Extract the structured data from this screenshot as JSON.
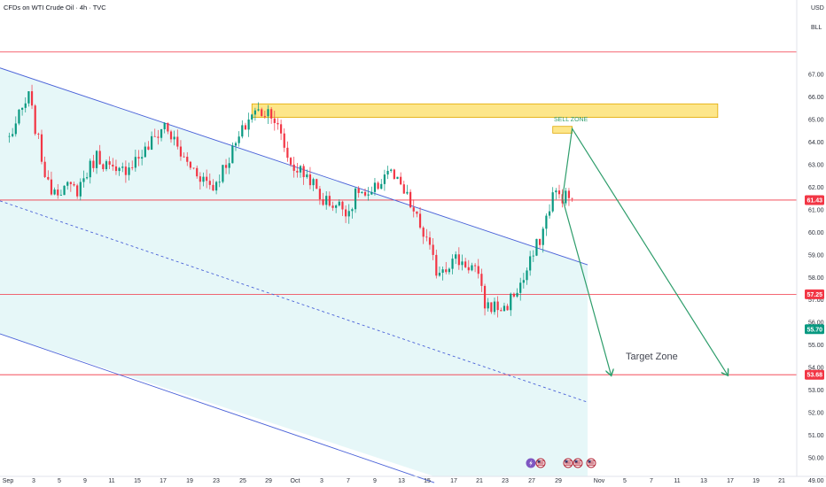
{
  "header": {
    "title": "CFDs on WTI Crude Oil · 4h · TVC",
    "currency": "USD",
    "unit": "BLL"
  },
  "annotations": {
    "sell_zone": "SELL ZONE",
    "target_zone": "Target Zone"
  },
  "price_labels": [
    {
      "value": "61.43",
      "price": 61.43,
      "color": "#f23645"
    },
    {
      "value": "57.25",
      "price": 57.25,
      "color": "#f23645"
    },
    {
      "value": "55.70",
      "price": 55.7,
      "color": "#089981"
    },
    {
      "value": "53.68",
      "price": 53.68,
      "color": "#f23645"
    }
  ],
  "event_markers": [
    "lightning",
    "us-flag",
    "us-flag",
    "us-flag",
    "us-flag"
  ],
  "colors": {
    "up": "#089981",
    "down": "#f23645",
    "channel": "#4a62d8",
    "channel_fill": "#e6f7f8",
    "zone_fill": "#fde68a",
    "zone_border": "#e0a800",
    "arrow": "#2e9d6b",
    "hline": "#f23645"
  },
  "chart_data": {
    "type": "candlestick",
    "title": "CFDs on WTI Crude Oil · 4h · TVC",
    "ylabel": "USD",
    "ylim": [
      48.6,
      68.3
    ],
    "y_ticks": [
      49.0,
      50.0,
      51.0,
      52.0,
      53.0,
      54.0,
      55.0,
      56.0,
      57.0,
      58.0,
      59.0,
      60.0,
      61.0,
      62.0,
      63.0,
      64.0,
      65.0,
      66.0,
      67.0
    ],
    "x_ticks": [
      "Sep",
      "3",
      "5",
      "9",
      "11",
      "15",
      "17",
      "19",
      "23",
      "25",
      "29",
      "Oct",
      "3",
      "7",
      "9",
      "13",
      "15",
      "17",
      "21",
      "23",
      "27",
      "29",
      "Nov",
      "5",
      "7",
      "11",
      "13",
      "17",
      "19",
      "21"
    ],
    "series": [
      {
        "name": "WTI Crude Oil 4h",
        "anchors": [
          {
            "date": "Sep 1",
            "price": 64.2
          },
          {
            "date": "Sep 3",
            "price": 66.0
          },
          {
            "date": "Sep 5",
            "price": 62.0
          },
          {
            "date": "Sep 8",
            "price": 61.9
          },
          {
            "date": "Sep 10",
            "price": 63.4
          },
          {
            "date": "Sep 11",
            "price": 63.0
          },
          {
            "date": "Sep 12",
            "price": 62.5
          },
          {
            "date": "Sep 15",
            "price": 63.6
          },
          {
            "date": "Sep 17",
            "price": 64.8
          },
          {
            "date": "Sep 19",
            "price": 63.2
          },
          {
            "date": "Sep 22",
            "price": 62.0
          },
          {
            "date": "Sep 24",
            "price": 63.6
          },
          {
            "date": "Sep 26",
            "price": 65.3
          },
          {
            "date": "Sep 28",
            "price": 65.4
          },
          {
            "date": "Sep 30",
            "price": 63.0
          },
          {
            "date": "Oct 2",
            "price": 62.4
          },
          {
            "date": "Oct 3",
            "price": 61.5
          },
          {
            "date": "Oct 6",
            "price": 61.0
          },
          {
            "date": "Oct 7",
            "price": 61.9
          },
          {
            "date": "Oct 8",
            "price": 61.4
          },
          {
            "date": "Oct 10",
            "price": 62.8
          },
          {
            "date": "Oct 12",
            "price": 61.5
          },
          {
            "date": "Oct 14",
            "price": 59.6
          },
          {
            "date": "Oct 15",
            "price": 58.3
          },
          {
            "date": "Oct 17",
            "price": 58.8
          },
          {
            "date": "Oct 19",
            "price": 58.4
          },
          {
            "date": "Oct 20",
            "price": 56.8
          },
          {
            "date": "Oct 22",
            "price": 56.6
          },
          {
            "date": "Oct 24",
            "price": 57.9
          },
          {
            "date": "Oct 26",
            "price": 60.1
          },
          {
            "date": "Oct 27",
            "price": 61.7
          },
          {
            "date": "Oct 29",
            "price": 61.5
          }
        ]
      }
    ],
    "horizontal_lines": [
      68.0,
      61.43,
      57.25,
      53.68
    ],
    "resistance_zones": [
      {
        "label": "",
        "from_date": "Sep 26",
        "to_date": "Nov 13",
        "price_low": 65.1,
        "price_high": 65.7
      },
      {
        "label": "SELL ZONE",
        "from_date": "Oct 27",
        "to_date": "Oct 29",
        "price_low": 64.4,
        "price_high": 64.7
      }
    ],
    "descending_channel": {
      "upper": [
        {
          "date": "Aug 31",
          "price": 67.3
        },
        {
          "date": "Oct 31",
          "price": 58.5
        }
      ],
      "mid": [
        {
          "date": "Aug 31",
          "price": 61.4
        },
        {
          "date": "Oct 31",
          "price": 52.4
        }
      ],
      "lower": [
        {
          "date": "Aug 31",
          "price": 55.5
        },
        {
          "date": "Oct 31",
          "price": 46.5
        }
      ]
    },
    "projections": [
      {
        "path": [
          {
            "date": "Oct 28",
            "price": 61.5
          },
          {
            "date": "Oct 29",
            "price": 64.6
          },
          {
            "date": "Nov 14",
            "price": 53.68
          }
        ]
      },
      {
        "path": [
          {
            "date": "Oct 28",
            "price": 61.5
          },
          {
            "date": "Nov 2",
            "price": 53.68
          }
        ]
      }
    ]
  }
}
